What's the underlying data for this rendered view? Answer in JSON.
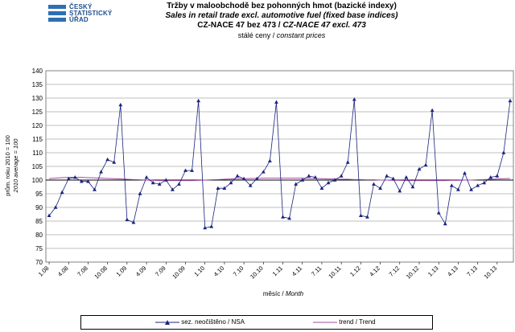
{
  "logo": {
    "lines": [
      "ČESKÝ",
      "STATISTICKÝ",
      "ÚŘAD"
    ],
    "color": "#1f4e8c"
  },
  "header": {
    "title_cz": "Tržby v maloobchodě bez pohonných hmot (bazické indexy)",
    "title_en": "Sales in retail trade excl. automotive fuel (fixed base indices)",
    "nace_cz": "CZ-NACE 47 bez 473 /",
    "nace_en": "CZ-NACE 47 excl. 473",
    "prices_cz": "stálé ceny /",
    "prices_en": "constant prices"
  },
  "chart_data": {
    "type": "line",
    "xlabel_cz": "měsíc /",
    "xlabel_en": "Month",
    "ylabel_cz": "prům. roku 2010 = 100",
    "ylabel_en": "2010 average = 100",
    "ylim": [
      70,
      140
    ],
    "ytick_step": 5,
    "grid": true,
    "legend_position": "bottom",
    "x_tick_labels": [
      "1.08",
      "4.08",
      "7.08",
      "10.08",
      "1.09",
      "4.09",
      "7.09",
      "10.09",
      "1.10",
      "4.10",
      "7.10",
      "10.10",
      "1.11",
      "4.11",
      "7.11",
      "10.11",
      "1.12",
      "4.12",
      "7.12",
      "10.12",
      "1.13",
      "4.13",
      "7.13",
      "10.13"
    ],
    "x": [
      "1.08",
      "2.08",
      "3.08",
      "4.08",
      "5.08",
      "6.08",
      "7.08",
      "8.08",
      "9.08",
      "10.08",
      "11.08",
      "12.08",
      "1.09",
      "2.09",
      "3.09",
      "4.09",
      "5.09",
      "6.09",
      "7.09",
      "8.09",
      "9.09",
      "10.09",
      "11.09",
      "12.09",
      "1.10",
      "2.10",
      "3.10",
      "4.10",
      "5.10",
      "6.10",
      "7.10",
      "8.10",
      "9.10",
      "10.10",
      "11.10",
      "12.10",
      "1.11",
      "2.11",
      "3.11",
      "4.11",
      "5.11",
      "6.11",
      "7.11",
      "8.11",
      "9.11",
      "10.11",
      "11.11",
      "12.11",
      "1.12",
      "2.12",
      "3.12",
      "4.12",
      "5.12",
      "6.12",
      "7.12",
      "8.12",
      "9.12",
      "10.12",
      "11.12",
      "12.12",
      "1.13",
      "2.13",
      "3.13",
      "4.13",
      "5.13",
      "6.13",
      "7.13",
      "8.13",
      "9.13",
      "10.13",
      "11.13",
      "12.13"
    ],
    "series": [
      {
        "name": "sez. neočištěno / NSA",
        "color": "#1a237e",
        "marker": "triangle",
        "values": [
          87,
          90,
          95.5,
          100.5,
          101,
          99.5,
          99.5,
          96.5,
          103,
          107.5,
          106.5,
          127.5,
          85.5,
          84.5,
          95,
          101,
          99,
          98.5,
          100,
          96.5,
          98.5,
          103.5,
          103.5,
          129,
          82.5,
          83,
          97,
          97,
          99,
          101.5,
          100.5,
          98,
          100.5,
          103,
          107,
          128.5,
          86.5,
          86,
          98.5,
          100,
          101.5,
          101,
          97,
          99,
          100,
          101.5,
          106.5,
          129.5,
          87,
          86.5,
          98.5,
          97,
          101.5,
          100.5,
          96,
          101,
          97.5,
          104,
          105.5,
          125.5,
          88,
          84,
          98,
          96.5,
          102.5,
          96.5,
          98,
          99,
          101,
          101.5,
          110,
          129
        ]
      },
      {
        "name": "trend / Trend",
        "color": "#a04aa0",
        "marker": "none",
        "values": [
          100.5,
          100.7,
          100.9,
          101,
          101,
          101,
          100.9,
          100.8,
          100.7,
          100.6,
          100.5,
          100.4,
          100.3,
          100.2,
          100.1,
          100,
          99.9,
          99.8,
          99.8,
          99.8,
          99.8,
          99.8,
          99.8,
          99.9,
          100,
          100.1,
          100.2,
          100.3,
          100.4,
          100.5,
          100.5,
          100.6,
          100.6,
          100.7,
          100.7,
          100.7,
          100.7,
          100.7,
          100.7,
          100.7,
          100.6,
          100.6,
          100.5,
          100.4,
          100.4,
          100.3,
          100.3,
          100.2,
          100.2,
          100.1,
          100.1,
          100,
          100,
          99.9,
          99.9,
          99.8,
          99.8,
          99.8,
          99.8,
          99.8,
          99.8,
          99.8,
          99.9,
          99.9,
          100,
          100,
          100.1,
          100.2,
          100.3,
          100.4,
          100.5,
          100.6
        ]
      }
    ]
  }
}
